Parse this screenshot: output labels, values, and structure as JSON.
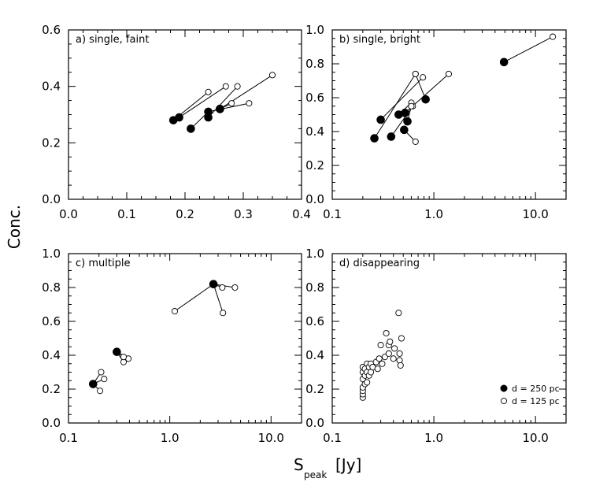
{
  "ylabel": "Conc.",
  "xlabel": {
    "main": "S",
    "sub": "peak",
    "unit": "[Jy]"
  },
  "legend": {
    "filled": "d = 250 pc",
    "open": "d = 125 pc"
  },
  "chart_data": [
    {
      "panel": "a",
      "title": "a) single, faint",
      "type": "scatter",
      "xscale": "linear",
      "xlim": [
        0.0,
        0.4
      ],
      "ylim": [
        0.0,
        0.6
      ],
      "xticks": [
        0.0,
        0.1,
        0.2,
        0.3,
        0.4
      ],
      "xtick_labels": [
        "0.0",
        "0.1",
        "0.2",
        "0.3",
        "0.4"
      ],
      "yticks": [
        0.0,
        0.2,
        0.4,
        0.6
      ],
      "ytick_labels": [
        "0.0",
        "0.2",
        "0.4",
        "0.6"
      ],
      "pairs": [
        {
          "filled": [
            0.18,
            0.28
          ],
          "open": [
            [
              0.24,
              0.38
            ]
          ]
        },
        {
          "filled": [
            0.19,
            0.29
          ],
          "open": [
            [
              0.27,
              0.4
            ]
          ]
        },
        {
          "filled": [
            0.21,
            0.25
          ],
          "open": [
            [
              0.24,
              0.31
            ]
          ]
        },
        {
          "filled": [
            0.24,
            0.29
          ],
          "open": [
            [
              0.29,
              0.4
            ]
          ]
        },
        {
          "filled": [
            0.24,
            0.31
          ],
          "open": [
            [
              0.31,
              0.34
            ]
          ]
        },
        {
          "filled": [
            0.26,
            0.32
          ],
          "open": [
            [
              0.35,
              0.44
            ]
          ]
        },
        {
          "filled": [
            0.26,
            0.32
          ],
          "open": [
            [
              0.28,
              0.34
            ]
          ]
        }
      ]
    },
    {
      "panel": "b",
      "title": "b) single, bright",
      "type": "scatter",
      "xscale": "log",
      "xlim": [
        0.1,
        20.0
      ],
      "ylim": [
        0.0,
        1.0
      ],
      "xticks": [
        0.1,
        1.0,
        10.0
      ],
      "xtick_labels": [
        "0.1",
        "1.0",
        "10.0"
      ],
      "yticks": [
        0.0,
        0.2,
        0.4,
        0.6,
        0.8,
        1.0
      ],
      "ytick_labels": [
        "0.0",
        "0.2",
        "0.4",
        "0.6",
        "0.8",
        "1.0"
      ],
      "pairs": [
        {
          "filled": [
            0.26,
            0.36
          ],
          "open": [
            [
              0.66,
              0.74
            ]
          ]
        },
        {
          "filled": [
            0.3,
            0.47
          ],
          "open": [
            [
              0.78,
              0.72
            ]
          ]
        },
        {
          "filled": [
            0.38,
            0.37
          ],
          "open": [
            [
              0.62,
              0.55
            ]
          ]
        },
        {
          "filled": [
            0.45,
            0.5
          ],
          "open": [
            [
              0.6,
              0.57
            ]
          ]
        },
        {
          "filled": [
            0.52,
            0.51
          ],
          "open": [
            [
              1.4,
              0.74
            ]
          ]
        },
        {
          "filled": [
            0.51,
            0.41
          ],
          "open": [
            [
              0.66,
              0.34
            ]
          ]
        },
        {
          "filled": [
            0.55,
            0.46
          ],
          "open": [
            [
              0.6,
              0.55
            ]
          ]
        },
        {
          "filled": [
            0.83,
            0.59
          ],
          "open": [
            [
              0.66,
              0.74
            ]
          ]
        },
        {
          "filled": [
            4.9,
            0.81
          ],
          "open": [
            [
              14.8,
              0.96
            ]
          ]
        }
      ]
    },
    {
      "panel": "c",
      "title": "c) multiple",
      "type": "scatter",
      "xscale": "log",
      "xlim": [
        0.1,
        20.0
      ],
      "ylim": [
        0.0,
        1.0
      ],
      "xticks": [
        0.1,
        1.0,
        10.0
      ],
      "xtick_labels": [
        "0.1",
        "1.0",
        "10.0"
      ],
      "yticks": [
        0.0,
        0.2,
        0.4,
        0.6,
        0.8,
        1.0
      ],
      "ytick_labels": [
        "0.0",
        "0.2",
        "0.4",
        "0.6",
        "0.8",
        "1.0"
      ],
      "pairs": [
        {
          "filled": [
            0.175,
            0.23
          ],
          "open": [
            [
              0.21,
              0.3
            ],
            [
              0.225,
              0.26
            ],
            [
              0.205,
              0.19
            ]
          ]
        },
        {
          "filled": [
            0.3,
            0.42
          ],
          "open": [
            [
              0.35,
              0.36
            ],
            [
              0.39,
              0.38
            ],
            [
              0.35,
              0.39
            ]
          ]
        },
        {
          "filled": [
            2.7,
            0.82
          ],
          "open": [
            [
              1.12,
              0.66
            ],
            [
              3.3,
              0.8
            ],
            [
              4.4,
              0.8
            ],
            [
              3.35,
              0.65
            ]
          ]
        }
      ]
    },
    {
      "panel": "d",
      "title": "d) disappearing",
      "type": "scatter",
      "xscale": "log",
      "xlim": [
        0.1,
        20.0
      ],
      "ylim": [
        0.0,
        1.0
      ],
      "xticks": [
        0.1,
        1.0,
        10.0
      ],
      "xtick_labels": [
        "0.1",
        "1.0",
        "10.0"
      ],
      "yticks": [
        0.0,
        0.2,
        0.4,
        0.6,
        0.8,
        1.0
      ],
      "ytick_labels": [
        "0.0",
        "0.2",
        "0.4",
        "0.6",
        "0.8",
        "1.0"
      ],
      "open_points": [
        [
          0.2,
          0.15
        ],
        [
          0.2,
          0.17
        ],
        [
          0.2,
          0.19
        ],
        [
          0.2,
          0.21
        ],
        [
          0.2,
          0.26
        ],
        [
          0.2,
          0.3
        ],
        [
          0.2,
          0.33
        ],
        [
          0.21,
          0.23
        ],
        [
          0.21,
          0.28
        ],
        [
          0.21,
          0.32
        ],
        [
          0.22,
          0.24
        ],
        [
          0.22,
          0.3
        ],
        [
          0.22,
          0.35
        ],
        [
          0.23,
          0.28
        ],
        [
          0.23,
          0.33
        ],
        [
          0.24,
          0.3
        ],
        [
          0.24,
          0.35
        ],
        [
          0.25,
          0.33
        ],
        [
          0.27,
          0.36
        ],
        [
          0.28,
          0.32
        ],
        [
          0.29,
          0.38
        ],
        [
          0.3,
          0.46
        ],
        [
          0.31,
          0.35
        ],
        [
          0.33,
          0.39
        ],
        [
          0.34,
          0.53
        ],
        [
          0.36,
          0.41
        ],
        [
          0.36,
          0.46
        ],
        [
          0.37,
          0.48
        ],
        [
          0.4,
          0.38
        ],
        [
          0.41,
          0.44
        ],
        [
          0.45,
          0.65
        ],
        [
          0.46,
          0.37
        ],
        [
          0.46,
          0.41
        ],
        [
          0.48,
          0.5
        ],
        [
          0.47,
          0.34
        ]
      ]
    }
  ]
}
